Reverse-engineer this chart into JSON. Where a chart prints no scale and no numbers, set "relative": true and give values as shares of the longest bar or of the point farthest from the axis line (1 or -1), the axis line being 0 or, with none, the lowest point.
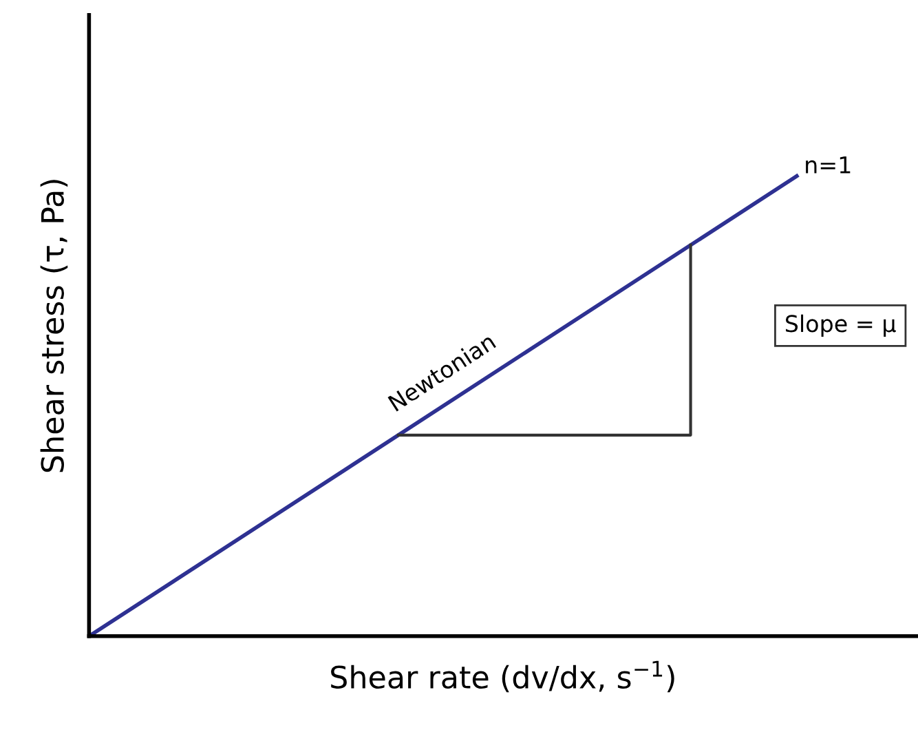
{
  "chart_data": {
    "type": "line",
    "relative": true,
    "xlabel": "Shear rate (dv/dx, s$^{−1}$)",
    "ylabel": "Shear stress (τ, Pa)",
    "categories": [
      null,
      null
    ],
    "series": [
      {
        "color": "#2e3192",
        "values": [
          0,
          1
        ]
      }
    ],
    "annotations": [
      "Newtonian",
      "n=1",
      "Slope = μ"
    ],
    "legend": false,
    "marker": "none",
    "line_style": "solid"
  }
}
